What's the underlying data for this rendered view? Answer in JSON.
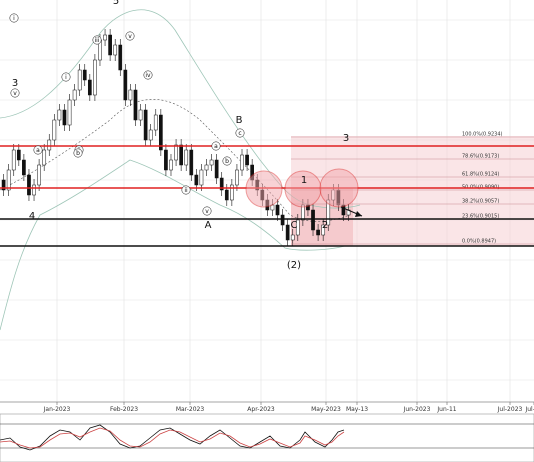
{
  "chart_data": {
    "type": "candlestick",
    "title": "",
    "xlabel": "",
    "ylabel": "",
    "x_ticks": [
      "Jan-2023",
      "Feb-2023",
      "Mar-2023",
      "Apr-2023",
      "May-2023",
      "May-13",
      "Jun-2023",
      "Jun-11",
      "Jul-2023",
      "Jul-09"
    ],
    "fib_levels": [
      {
        "label": "100.0%(0.9234)",
        "value": 0.9234
      },
      {
        "label": "78.6%(0.9173)",
        "value": 0.9173
      },
      {
        "label": "61.8%(0.9124)",
        "value": 0.9124
      },
      {
        "label": "50.0%(0.9090)",
        "value": 0.909
      },
      {
        "label": "38.2%(0.9057)",
        "value": 0.9057
      },
      {
        "label": "23.6%(0.9015)",
        "value": 0.9015
      },
      {
        "label": "0.0%(0.8947)",
        "value": 0.8947
      }
    ],
    "horizontal_lines": [
      {
        "color": "red",
        "value": 0.9234
      },
      {
        "color": "red",
        "value": 0.909
      },
      {
        "color": "black",
        "value": 0.9015
      },
      {
        "color": "black",
        "value": 0.8947
      }
    ],
    "wave_labels": [
      "3",
      "4",
      "5",
      "i",
      "ii",
      "iii",
      "iv",
      "v",
      "a",
      "b",
      "c",
      "A",
      "B",
      "C",
      "(2)",
      "1",
      "2",
      "3"
    ],
    "indicator": "stochastic oscillator (lower pane, two lines)",
    "grid": true
  }
}
